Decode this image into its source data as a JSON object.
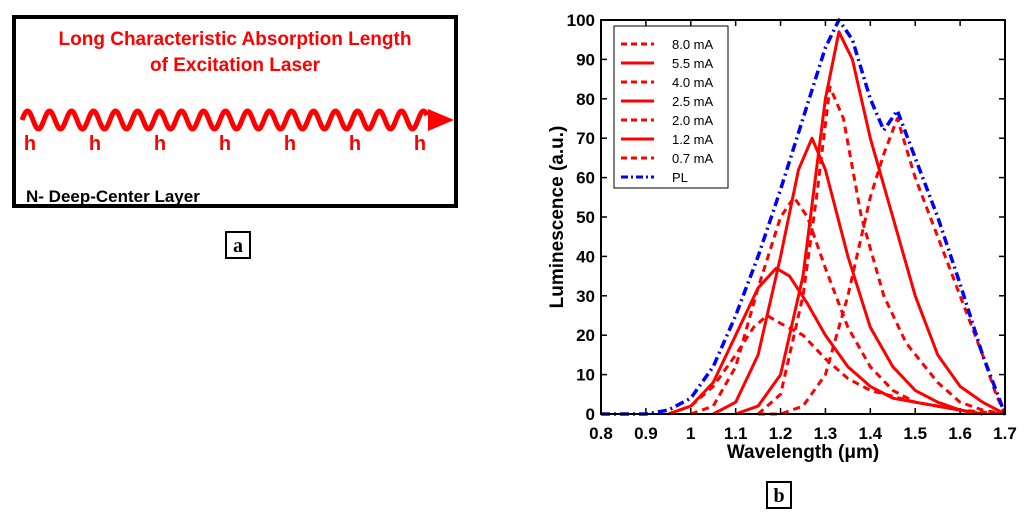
{
  "panel_a": {
    "title_line1": "Long Characteristic Absorption Length",
    "title_line2": "of Excitation Laser",
    "hole_label": "h",
    "hole_count": 7,
    "layer_label": "N- Deep-Center Layer",
    "tag": "a"
  },
  "panel_b_tag": "b",
  "colors": {
    "red": "#ff0000",
    "blue": "#0000ff",
    "black": "#000000"
  },
  "chart_data": {
    "type": "line",
    "xlabel": "Wavelength (μm)",
    "ylabel": "Luminescence (a.u.)",
    "xlim": [
      0.8,
      1.7
    ],
    "ylim": [
      0,
      100
    ],
    "x_ticks": [
      "0.8",
      "0.9",
      "1",
      "1.1",
      "1.2",
      "1.3",
      "1.4",
      "1.5",
      "1.6",
      "1.7"
    ],
    "y_ticks": [
      "0",
      "10",
      "20",
      "30",
      "40",
      "50",
      "60",
      "70",
      "80",
      "90",
      "100"
    ],
    "legend_position": "top-left",
    "series": [
      {
        "name": "8.0 mA",
        "style": "dashed",
        "color": "#ff0000",
        "points": [
          [
            1.15,
            0
          ],
          [
            1.2,
            0
          ],
          [
            1.25,
            2
          ],
          [
            1.3,
            10
          ],
          [
            1.35,
            30
          ],
          [
            1.4,
            55
          ],
          [
            1.43,
            66
          ],
          [
            1.46,
            75
          ],
          [
            1.5,
            60
          ],
          [
            1.55,
            45
          ],
          [
            1.6,
            30
          ],
          [
            1.65,
            15
          ],
          [
            1.68,
            5
          ],
          [
            1.7,
            0
          ]
        ]
      },
      {
        "name": "5.5 mA",
        "style": "solid",
        "color": "#ff0000",
        "points": [
          [
            1.1,
            0
          ],
          [
            1.15,
            2
          ],
          [
            1.2,
            10
          ],
          [
            1.25,
            35
          ],
          [
            1.3,
            80
          ],
          [
            1.33,
            97
          ],
          [
            1.36,
            90
          ],
          [
            1.4,
            70
          ],
          [
            1.45,
            50
          ],
          [
            1.5,
            30
          ],
          [
            1.55,
            15
          ],
          [
            1.6,
            7
          ],
          [
            1.65,
            3
          ],
          [
            1.7,
            0
          ]
        ]
      },
      {
        "name": "4.0 mA",
        "style": "dashed",
        "color": "#ff0000",
        "points": [
          [
            1.15,
            0
          ],
          [
            1.2,
            5
          ],
          [
            1.25,
            30
          ],
          [
            1.28,
            55
          ],
          [
            1.31,
            83
          ],
          [
            1.34,
            75
          ],
          [
            1.38,
            50
          ],
          [
            1.43,
            30
          ],
          [
            1.48,
            18
          ],
          [
            1.55,
            8
          ],
          [
            1.6,
            3
          ],
          [
            1.65,
            1
          ],
          [
            1.7,
            0
          ]
        ]
      },
      {
        "name": "2.5 mA",
        "style": "solid",
        "color": "#ff0000",
        "points": [
          [
            1.05,
            0
          ],
          [
            1.1,
            3
          ],
          [
            1.15,
            15
          ],
          [
            1.2,
            40
          ],
          [
            1.24,
            62
          ],
          [
            1.27,
            70
          ],
          [
            1.3,
            62
          ],
          [
            1.35,
            40
          ],
          [
            1.4,
            22
          ],
          [
            1.45,
            12
          ],
          [
            1.5,
            6
          ],
          [
            1.55,
            3
          ],
          [
            1.6,
            1
          ],
          [
            1.65,
            0
          ]
        ]
      },
      {
        "name": "2.0 mA",
        "style": "dashed",
        "color": "#ff0000",
        "points": [
          [
            1.0,
            0
          ],
          [
            1.05,
            2
          ],
          [
            1.1,
            12
          ],
          [
            1.15,
            32
          ],
          [
            1.2,
            50
          ],
          [
            1.23,
            55
          ],
          [
            1.26,
            50
          ],
          [
            1.3,
            37
          ],
          [
            1.35,
            22
          ],
          [
            1.4,
            12
          ],
          [
            1.45,
            6
          ],
          [
            1.5,
            3
          ],
          [
            1.6,
            1
          ],
          [
            1.65,
            0
          ]
        ]
      },
      {
        "name": "1.2 mA",
        "style": "solid",
        "color": "#ff0000",
        "points": [
          [
            0.95,
            0
          ],
          [
            1.0,
            2
          ],
          [
            1.05,
            8
          ],
          [
            1.1,
            20
          ],
          [
            1.15,
            32
          ],
          [
            1.19,
            37
          ],
          [
            1.22,
            35
          ],
          [
            1.26,
            28
          ],
          [
            1.3,
            20
          ],
          [
            1.35,
            12
          ],
          [
            1.4,
            7
          ],
          [
            1.45,
            4
          ],
          [
            1.5,
            3
          ],
          [
            1.6,
            1
          ],
          [
            1.65,
            0
          ]
        ]
      },
      {
        "name": "0.7 mA",
        "style": "dashed",
        "color": "#ff0000",
        "points": [
          [
            0.95,
            0
          ],
          [
            1.0,
            2
          ],
          [
            1.05,
            7
          ],
          [
            1.1,
            15
          ],
          [
            1.14,
            22
          ],
          [
            1.17,
            25
          ],
          [
            1.2,
            23
          ],
          [
            1.25,
            20
          ],
          [
            1.3,
            14
          ],
          [
            1.35,
            9
          ],
          [
            1.4,
            6
          ],
          [
            1.5,
            3
          ],
          [
            1.6,
            1
          ],
          [
            1.7,
            0
          ]
        ]
      },
      {
        "name": "PL",
        "style": "dashdot",
        "color": "#0000ff",
        "points": [
          [
            0.8,
            0
          ],
          [
            0.9,
            0
          ],
          [
            0.95,
            1
          ],
          [
            1.0,
            4
          ],
          [
            1.05,
            12
          ],
          [
            1.1,
            25
          ],
          [
            1.15,
            40
          ],
          [
            1.2,
            57
          ],
          [
            1.25,
            75
          ],
          [
            1.3,
            93
          ],
          [
            1.33,
            100
          ],
          [
            1.36,
            95
          ],
          [
            1.4,
            80
          ],
          [
            1.43,
            72
          ],
          [
            1.46,
            77
          ],
          [
            1.5,
            65
          ],
          [
            1.55,
            50
          ],
          [
            1.6,
            33
          ],
          [
            1.65,
            15
          ],
          [
            1.7,
            0
          ]
        ]
      }
    ]
  }
}
